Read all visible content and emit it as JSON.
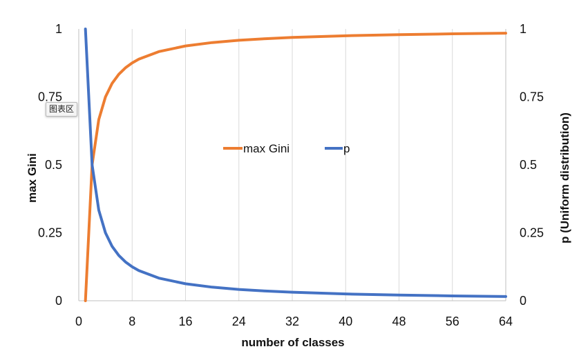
{
  "chart_data": {
    "type": "line",
    "title": "",
    "xlabel": "number of classes",
    "ylabel_left": "max Gini",
    "ylabel_right": "p (Uniform distribution)",
    "xlim": [
      0,
      64
    ],
    "ylim": [
      0,
      1
    ],
    "x_ticks": [
      "0",
      "8",
      "16",
      "24",
      "32",
      "40",
      "48",
      "56",
      "64"
    ],
    "y_ticks_left": [
      "0",
      "0.25",
      "0.5",
      "0.75",
      "1"
    ],
    "y_ticks_right": [
      "0",
      "0.25",
      "0.5",
      "0.75",
      "1"
    ],
    "grid": "vertical",
    "legend_position": "center",
    "series": [
      {
        "name": "max Gini",
        "color": "#ED7D31",
        "x": [
          1,
          2,
          3,
          4,
          5,
          6,
          7,
          8,
          9,
          12,
          16,
          20,
          24,
          28,
          32,
          40,
          48,
          56,
          64
        ],
        "y": [
          0,
          0.5,
          0.6667,
          0.75,
          0.8,
          0.8333,
          0.8571,
          0.875,
          0.8889,
          0.9167,
          0.9375,
          0.95,
          0.9583,
          0.9643,
          0.9688,
          0.975,
          0.9792,
          0.9821,
          0.9844
        ]
      },
      {
        "name": "p",
        "color": "#4472C4",
        "x": [
          1,
          2,
          3,
          4,
          5,
          6,
          7,
          8,
          9,
          12,
          16,
          20,
          24,
          28,
          32,
          40,
          48,
          56,
          64
        ],
        "y": [
          1,
          0.5,
          0.3333,
          0.25,
          0.2,
          0.1667,
          0.1429,
          0.125,
          0.1111,
          0.0833,
          0.0625,
          0.05,
          0.0417,
          0.0357,
          0.0313,
          0.025,
          0.0208,
          0.0179,
          0.0156
        ]
      }
    ]
  },
  "tooltip": {
    "text": "图表区"
  }
}
